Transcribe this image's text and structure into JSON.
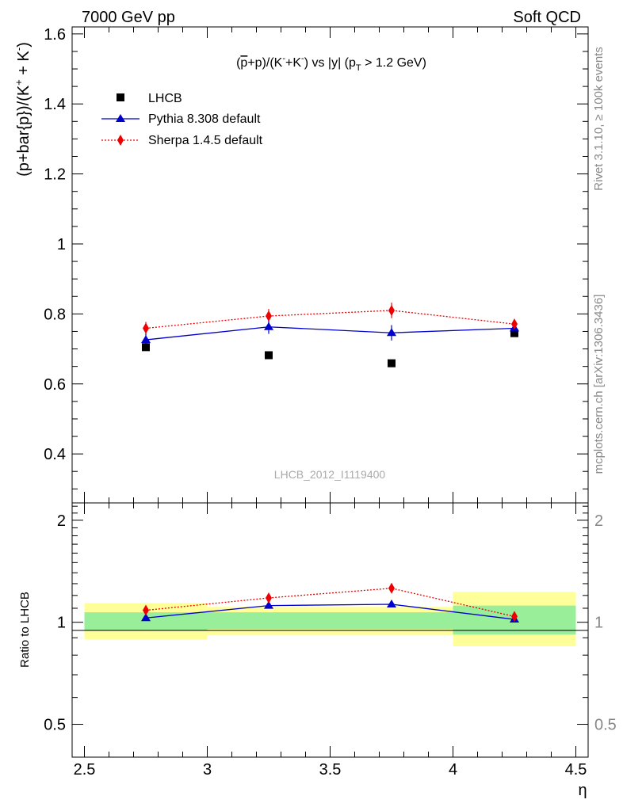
{
  "header": {
    "left_label": "7000 GeV pp",
    "right_label": "Soft QCD"
  },
  "side_labels": {
    "rivet": "Rivet 3.1.10, ≥ 100k events",
    "source": "mcplots.cern.ch [arXiv:1306.3436]"
  },
  "watermark": "LHCB_2012_I1119400",
  "colors": {
    "lhcb": "#000000",
    "pythia": "#0000cc",
    "sherpa": "#ee0000",
    "band_yellow": "#ffff99",
    "band_green": "#99ee99"
  },
  "chart_data": [
    {
      "type": "scatter",
      "title_parts": {
        "pre": "(",
        "pbar": "p",
        "mid1": "+p)/(K",
        "sup1": "-",
        "mid2": "+K",
        "sup2": "-",
        "mid3": ") vs |y| (p",
        "sub": "T",
        "post": " > 1.2 GeV)"
      },
      "ylabel": "(p+bar{p})/(K^{+} + K^{-})",
      "ylabel_parts": {
        "main": "(p+bar{p})/(K",
        "sup1": "+",
        "mid": " + K",
        "sup2": "-",
        "end": ")"
      },
      "ylim": [
        0.26,
        1.62
      ],
      "yticks": [
        0.4,
        0.6,
        0.8,
        1.0,
        1.2,
        1.4,
        1.6
      ],
      "ytick_labels": [
        "0.4",
        "0.6",
        "0.8",
        "1",
        "1.2",
        "1.4",
        "1.6"
      ],
      "xlim": [
        2.45,
        4.55
      ],
      "legend": [
        {
          "label": "LHCB",
          "marker": "square"
        },
        {
          "label": "Pythia 8.308 default",
          "marker": "triangle"
        },
        {
          "label": "Sherpa 1.4.5 default",
          "marker": "diamond"
        }
      ],
      "series": [
        {
          "name": "LHCB",
          "x": [
            2.75,
            3.25,
            3.75,
            4.25
          ],
          "values": [
            0.705,
            0.682,
            0.659,
            0.745
          ],
          "err": [
            0.01,
            0.01,
            0.01,
            0.01
          ]
        },
        {
          "name": "Pythia 8.308 default",
          "x": [
            2.75,
            3.25,
            3.75,
            4.25
          ],
          "values": [
            0.726,
            0.763,
            0.746,
            0.759
          ],
          "err": [
            0.018,
            0.02,
            0.022,
            0.012
          ]
        },
        {
          "name": "Sherpa 1.4.5 default",
          "x": [
            2.75,
            3.25,
            3.75,
            4.25
          ],
          "values": [
            0.759,
            0.794,
            0.81,
            0.771
          ],
          "err": [
            0.018,
            0.02,
            0.022,
            0.014
          ]
        }
      ]
    },
    {
      "type": "line",
      "ylabel": "Ratio to LHCB",
      "xlabel": "η",
      "scale": "log",
      "ylim": [
        0.4,
        2.25
      ],
      "yticks": [
        0.5,
        1,
        2
      ],
      "ytick_labels": [
        "0.5",
        "1",
        "2"
      ],
      "xlim": [
        2.45,
        4.55
      ],
      "xticks": [
        2.5,
        3,
        3.5,
        4,
        4.5
      ],
      "xtick_labels": [
        "2.5",
        "3",
        "3.5",
        "4",
        "4.5"
      ],
      "bands": [
        {
          "x": [
            2.5,
            3.0
          ],
          "yellow": [
            0.89,
            1.14
          ],
          "green": [
            0.945,
            1.07
          ]
        },
        {
          "x": [
            3.0,
            4.0
          ],
          "yellow": [
            0.915,
            1.11
          ],
          "green": [
            0.955,
            1.07
          ]
        },
        {
          "x": [
            4.0,
            4.5
          ],
          "yellow": [
            0.85,
            1.23
          ],
          "green": [
            0.92,
            1.12
          ]
        }
      ],
      "series": [
        {
          "name": "Pythia 8.308 default",
          "x": [
            2.75,
            3.25,
            3.75,
            4.25
          ],
          "values": [
            1.03,
            1.12,
            1.13,
            1.02
          ]
        },
        {
          "name": "Sherpa 1.4.5 default",
          "x": [
            2.75,
            3.25,
            3.75,
            4.25
          ],
          "values": [
            1.085,
            1.18,
            1.26,
            1.04
          ]
        }
      ]
    }
  ]
}
